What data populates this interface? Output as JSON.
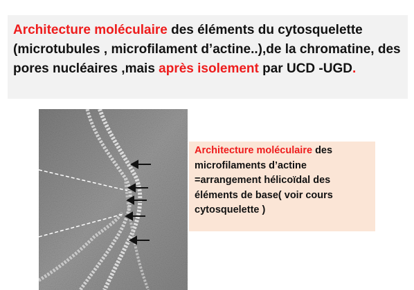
{
  "header": {
    "term": "Architecture moléculaire",
    "text1": "  des éléments  du cytosquelette (microtubules , microfilament d’actine..),de la chromatine,   des pores nucléaires ,mais ",
    "highlight": "après  isolement",
    "text2": " par UCD -UGD",
    "period": "."
  },
  "figure": {
    "kind": "electron micrograph",
    "arrow_count": 5
  },
  "caption": {
    "term": "Architecture moléculaire",
    "text": " des microfilaments d’actine =arrangement hélicoïdal des éléments de base( voir cours cytosquelette )"
  },
  "colors": {
    "accent_red": "#ee1c1c",
    "header_bg": "#f2f2f2",
    "caption_bg": "#fbe5d6"
  }
}
